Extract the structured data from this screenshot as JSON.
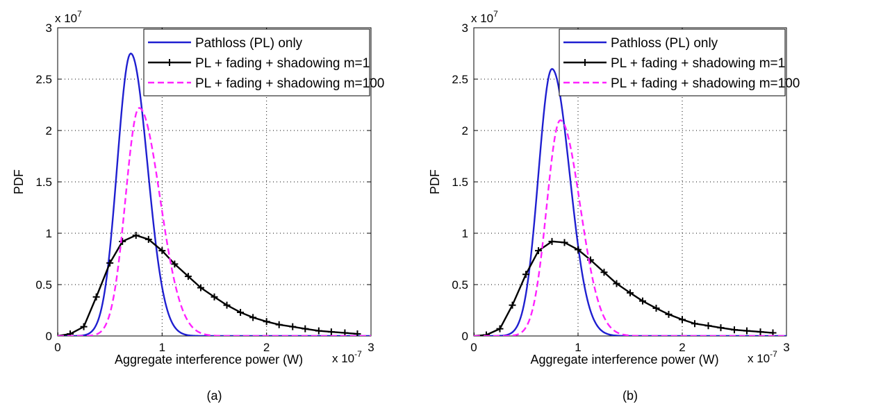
{
  "chart_data": [
    {
      "type": "line",
      "panel": "(a)",
      "caption": "(a)",
      "xlabel": "Aggregate interference power (W)",
      "ylabel": "PDF",
      "x_multiplier": "x 10",
      "x_exponent": "-7",
      "y_multiplier": "x 10",
      "y_exponent": "7",
      "xlim": [
        0,
        3
      ],
      "ylim": [
        0,
        3
      ],
      "xticks": [
        "0",
        "1",
        "2",
        "3"
      ],
      "yticks": [
        "0",
        "0.5",
        "1",
        "1.5",
        "2",
        "2.5",
        "3"
      ],
      "grid": true,
      "legend_position": "top-right",
      "series": [
        {
          "name": "Pathloss (PL) only",
          "color": "#1f1fd0",
          "style": "solid",
          "marker": "none",
          "peak_x": 0.7,
          "peak_y": 2.75,
          "sigma_left": 0.13,
          "sigma_right": 0.16
        },
        {
          "name": "PL + fading + shadowing m=1",
          "color": "#000000",
          "style": "solid",
          "marker": "plus",
          "x": [
            0,
            0.12,
            0.25,
            0.37,
            0.5,
            0.62,
            0.75,
            0.87,
            1.0,
            1.12,
            1.25,
            1.37,
            1.5,
            1.62,
            1.75,
            1.87,
            2.0,
            2.12,
            2.25,
            2.37,
            2.5,
            2.62,
            2.75,
            2.87
          ],
          "y": [
            0.0,
            0.02,
            0.09,
            0.38,
            0.71,
            0.92,
            0.98,
            0.94,
            0.83,
            0.7,
            0.58,
            0.47,
            0.38,
            0.3,
            0.23,
            0.18,
            0.14,
            0.11,
            0.09,
            0.07,
            0.05,
            0.04,
            0.03,
            0.02
          ]
        },
        {
          "name": "PL + fading + shadowing m=100",
          "color": "#ff22ff",
          "style": "dashed",
          "marker": "none",
          "peak_x": 0.78,
          "peak_y": 2.22,
          "sigma_left": 0.13,
          "sigma_right": 0.2
        }
      ]
    },
    {
      "type": "line",
      "panel": "(b)",
      "caption": "(b)",
      "xlabel": "Aggregate interference power (W)",
      "ylabel": "PDF",
      "x_multiplier": "x 10",
      "x_exponent": "-7",
      "y_multiplier": "x 10",
      "y_exponent": "7",
      "xlim": [
        0,
        3
      ],
      "ylim": [
        0,
        3
      ],
      "xticks": [
        "0",
        "1",
        "2",
        "3"
      ],
      "yticks": [
        "0",
        "0.5",
        "1",
        "1.5",
        "2",
        "2.5",
        "3"
      ],
      "grid": true,
      "legend_position": "top-right",
      "series": [
        {
          "name": "Pathloss (PL) only",
          "color": "#1f1fd0",
          "style": "solid",
          "marker": "none",
          "peak_x": 0.75,
          "peak_y": 2.6,
          "sigma_left": 0.13,
          "sigma_right": 0.17
        },
        {
          "name": "PL + fading + shadowing m=1",
          "color": "#000000",
          "style": "solid",
          "marker": "plus",
          "x": [
            0,
            0.12,
            0.25,
            0.37,
            0.5,
            0.62,
            0.75,
            0.87,
            1.0,
            1.12,
            1.25,
            1.37,
            1.5,
            1.62,
            1.75,
            1.87,
            2.0,
            2.12,
            2.25,
            2.37,
            2.5,
            2.62,
            2.75,
            2.87
          ],
          "y": [
            0.0,
            0.01,
            0.07,
            0.3,
            0.6,
            0.83,
            0.92,
            0.91,
            0.84,
            0.74,
            0.62,
            0.51,
            0.42,
            0.34,
            0.27,
            0.21,
            0.16,
            0.12,
            0.1,
            0.08,
            0.06,
            0.05,
            0.04,
            0.03
          ]
        },
        {
          "name": "PL + fading + shadowing m=100",
          "color": "#ff22ff",
          "style": "dashed",
          "marker": "none",
          "peak_x": 0.83,
          "peak_y": 2.1,
          "sigma_left": 0.13,
          "sigma_right": 0.19
        }
      ]
    }
  ]
}
